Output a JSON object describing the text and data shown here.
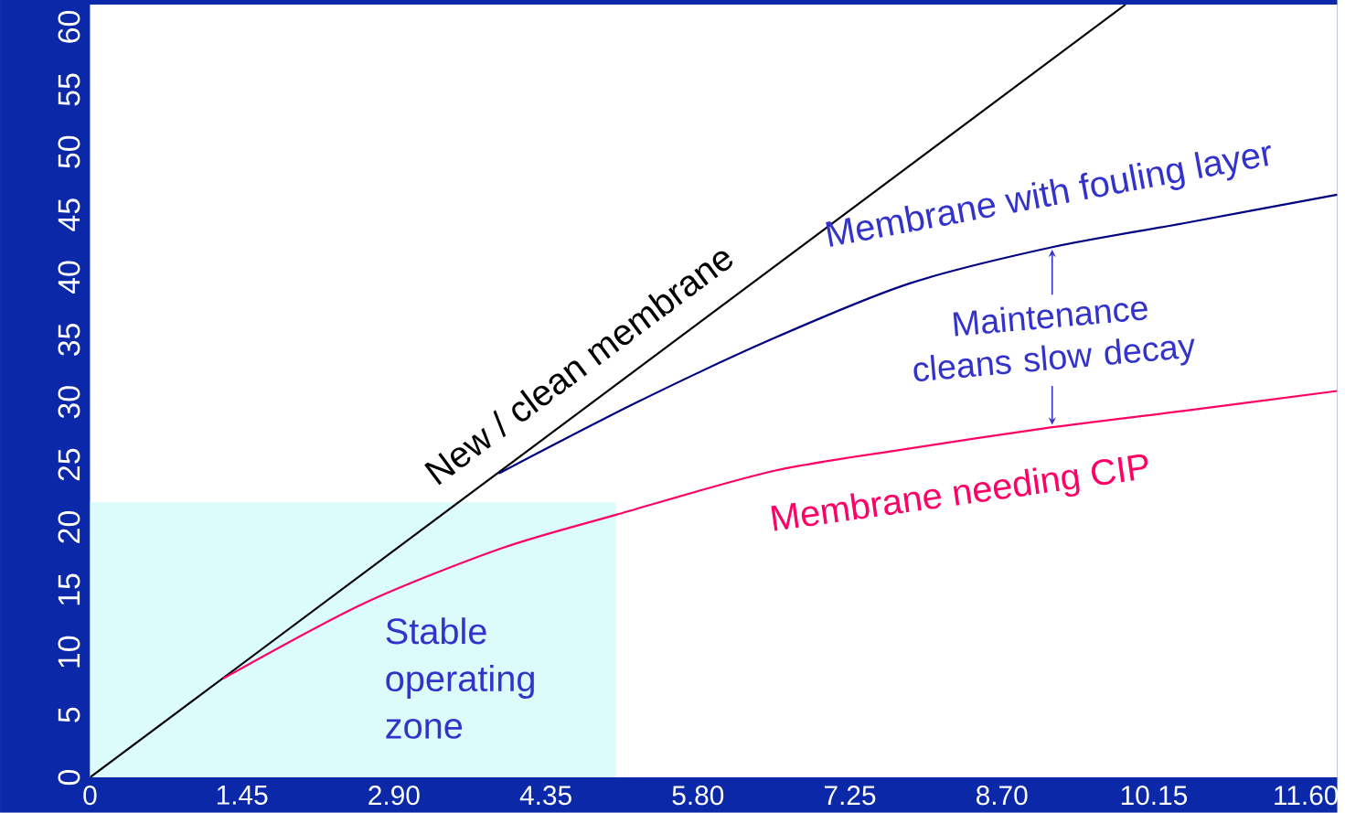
{
  "chart_data": {
    "type": "line",
    "xlim": [
      0,
      11.9
    ],
    "ylim": [
      0,
      61.8
    ],
    "xticks": [
      0,
      1.45,
      {
        "value": 2.9,
        "label": "2.90"
      },
      4.35,
      {
        "value": 5.8,
        "label": "5.80"
      },
      7.25,
      {
        "value": 8.7,
        "label": "8.70"
      },
      10.15,
      {
        "value": 11.6,
        "label": "11.60"
      }
    ],
    "yticks": [
      0,
      5,
      10,
      15,
      20,
      25,
      30,
      35,
      40,
      45,
      50,
      55,
      60
    ],
    "grid": false,
    "marker": "none",
    "line_style": "solid",
    "series": [
      {
        "name": "New / clean membrane",
        "color": "#000000",
        "x": [
          0,
          9.88
        ],
        "values": [
          0,
          61.8
        ]
      },
      {
        "name": "Membrane with fouling layer",
        "color": "#000080",
        "x": [
          3.9,
          5.22,
          6.52,
          7.82,
          9.18,
          10.43,
          11.9
        ],
        "values": [
          24.3,
          30.0,
          35.1,
          39.5,
          42.4,
          44.3,
          46.6
        ]
      },
      {
        "name": "Membrane needing CIP",
        "color": "#ff0066",
        "x": [
          1.27,
          2.61,
          3.92,
          5.02,
          6.52,
          7.82,
          9.18,
          10.43,
          11.9
        ],
        "values": [
          7.9,
          13.9,
          18.3,
          21.0,
          24.5,
          26.3,
          28.0,
          29.3,
          30.9
        ]
      }
    ],
    "bands": [
      {
        "axis": "x",
        "from": 0,
        "to": 5.02,
        "label": "Stable operating zone",
        "color": "#dcfbfb"
      }
    ],
    "annotations": [
      "Maintenance cleans slow decay"
    ]
  }
}
